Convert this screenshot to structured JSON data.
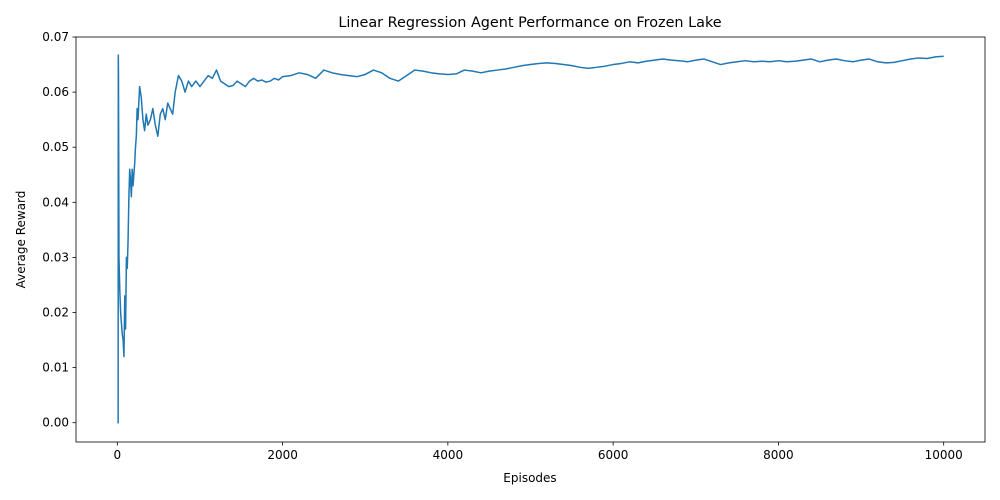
{
  "chart_data": {
    "type": "line",
    "title": "Linear Regression Agent Performance on Frozen Lake",
    "xlabel": "Episodes",
    "ylabel": "Average Reward",
    "xlim": [
      -500,
      10500
    ],
    "ylim": [
      -0.0035,
      0.07
    ],
    "xticks": [
      0,
      2000,
      4000,
      6000,
      8000,
      10000
    ],
    "xtick_labels": [
      "0",
      "2000",
      "4000",
      "6000",
      "8000",
      "10000"
    ],
    "yticks": [
      0.0,
      0.01,
      0.02,
      0.03,
      0.04,
      0.05,
      0.06,
      0.07
    ],
    "ytick_labels": [
      "0.00",
      "0.01",
      "0.02",
      "0.03",
      "0.04",
      "0.05",
      "0.06",
      "0.07"
    ],
    "grid": false,
    "legend": "none",
    "series": [
      {
        "color": "#1f77b4",
        "x": [
          0,
          10,
          12,
          14,
          20,
          30,
          40,
          50,
          60,
          70,
          80,
          90,
          100,
          110,
          120,
          130,
          140,
          150,
          160,
          170,
          180,
          190,
          200,
          210,
          220,
          230,
          240,
          250,
          270,
          290,
          310,
          330,
          350,
          370,
          400,
          430,
          460,
          490,
          520,
          550,
          580,
          610,
          640,
          670,
          700,
          740,
          780,
          820,
          860,
          900,
          950,
          1000,
          1050,
          1100,
          1150,
          1200,
          1250,
          1300,
          1350,
          1400,
          1450,
          1500,
          1550,
          1600,
          1650,
          1700,
          1750,
          1800,
          1850,
          1900,
          1950,
          2000,
          2100,
          2200,
          2300,
          2400,
          2500,
          2600,
          2700,
          2800,
          2900,
          3000,
          3100,
          3200,
          3300,
          3400,
          3500,
          3600,
          3700,
          3800,
          3900,
          4000,
          4100,
          4200,
          4300,
          4400,
          4500,
          4600,
          4700,
          4800,
          4900,
          5000,
          5100,
          5200,
          5300,
          5400,
          5500,
          5600,
          5700,
          5800,
          5900,
          6000,
          6100,
          6200,
          6300,
          6400,
          6500,
          6600,
          6700,
          6800,
          6900,
          7000,
          7100,
          7200,
          7300,
          7400,
          7500,
          7600,
          7700,
          7800,
          7900,
          8000,
          8100,
          8200,
          8300,
          8400,
          8500,
          8600,
          8700,
          8800,
          8900,
          9000,
          9100,
          9200,
          9300,
          9400,
          9500,
          9600,
          9700,
          9800,
          9900,
          10000
        ],
        "y": [
          0.0,
          0.0,
          0.0667,
          0.063,
          0.03,
          0.024,
          0.02,
          0.018,
          0.016,
          0.015,
          0.012,
          0.023,
          0.017,
          0.03,
          0.028,
          0.033,
          0.041,
          0.046,
          0.044,
          0.041,
          0.046,
          0.043,
          0.045,
          0.047,
          0.05,
          0.052,
          0.057,
          0.055,
          0.061,
          0.059,
          0.055,
          0.053,
          0.056,
          0.054,
          0.055,
          0.057,
          0.054,
          0.052,
          0.056,
          0.057,
          0.055,
          0.058,
          0.057,
          0.056,
          0.06,
          0.063,
          0.062,
          0.06,
          0.062,
          0.061,
          0.062,
          0.061,
          0.062,
          0.063,
          0.0625,
          0.064,
          0.062,
          0.0615,
          0.061,
          0.0612,
          0.062,
          0.0615,
          0.061,
          0.062,
          0.0625,
          0.062,
          0.0622,
          0.0618,
          0.062,
          0.0625,
          0.0622,
          0.0628,
          0.063,
          0.0635,
          0.0632,
          0.0625,
          0.064,
          0.0635,
          0.0632,
          0.063,
          0.0628,
          0.0632,
          0.064,
          0.0635,
          0.0625,
          0.062,
          0.063,
          0.064,
          0.0638,
          0.0635,
          0.0633,
          0.0632,
          0.0633,
          0.064,
          0.0638,
          0.0635,
          0.0638,
          0.064,
          0.0642,
          0.0645,
          0.0648,
          0.065,
          0.0652,
          0.0653,
          0.0652,
          0.065,
          0.0648,
          0.0645,
          0.0643,
          0.0645,
          0.0647,
          0.065,
          0.0652,
          0.0655,
          0.0653,
          0.0656,
          0.0658,
          0.066,
          0.0658,
          0.0657,
          0.0655,
          0.0658,
          0.066,
          0.0655,
          0.065,
          0.0653,
          0.0655,
          0.0657,
          0.0655,
          0.0656,
          0.0655,
          0.0657,
          0.0655,
          0.0656,
          0.0658,
          0.066,
          0.0655,
          0.0658,
          0.066,
          0.0657,
          0.0655,
          0.0658,
          0.066,
          0.0655,
          0.0653,
          0.0654,
          0.0657,
          0.066,
          0.0662,
          0.0661,
          0.0664,
          0.0665
        ]
      }
    ]
  }
}
